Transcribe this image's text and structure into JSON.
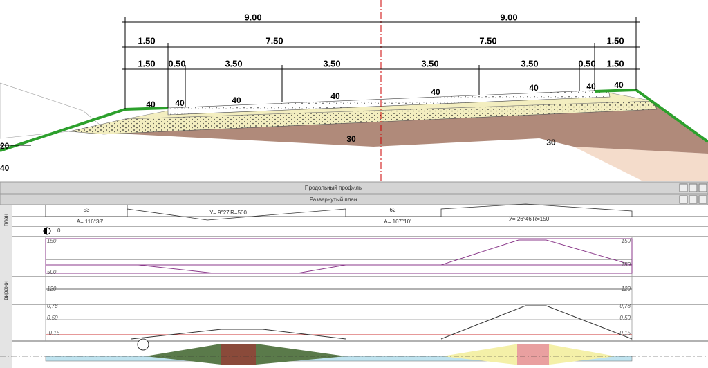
{
  "cross_section": {
    "dimensions": {
      "overall": [
        "9.00",
        "9.00"
      ],
      "middle": [
        "1.50",
        "7.50",
        "7.50",
        "1.50"
      ],
      "lanes": [
        "1.50",
        "0.50",
        "3.50",
        "3.50",
        "3.50",
        "3.50",
        "0.50",
        "1.50"
      ]
    },
    "slope_labels": [
      "40",
      "40",
      "40",
      "40",
      "40",
      "40",
      "40",
      "40"
    ],
    "layer_labels": [
      "30",
      "30"
    ],
    "edge_labels": [
      "20",
      "40"
    ]
  },
  "panels": {
    "profile_title": "Продольный профиль",
    "plan_title": "Развернутый план"
  },
  "plan": {
    "side_label": "план",
    "stations": [
      "53",
      "62"
    ],
    "curves": [
      "У= 9°27'R=500",
      "У= 26°46'R=150"
    ],
    "angles": [
      "А= 116°38'",
      "А= 107°10'"
    ],
    "marker": "0"
  },
  "superelevation": {
    "side_label": "виражи",
    "top_labels": [
      "150",
      "150",
      "150",
      "500"
    ],
    "mid_labels": [
      "120",
      "120"
    ],
    "bottom_labels": [
      "0,78",
      "0,78",
      "0,50",
      "0,50",
      "-0,15",
      "-0,15"
    ]
  }
}
